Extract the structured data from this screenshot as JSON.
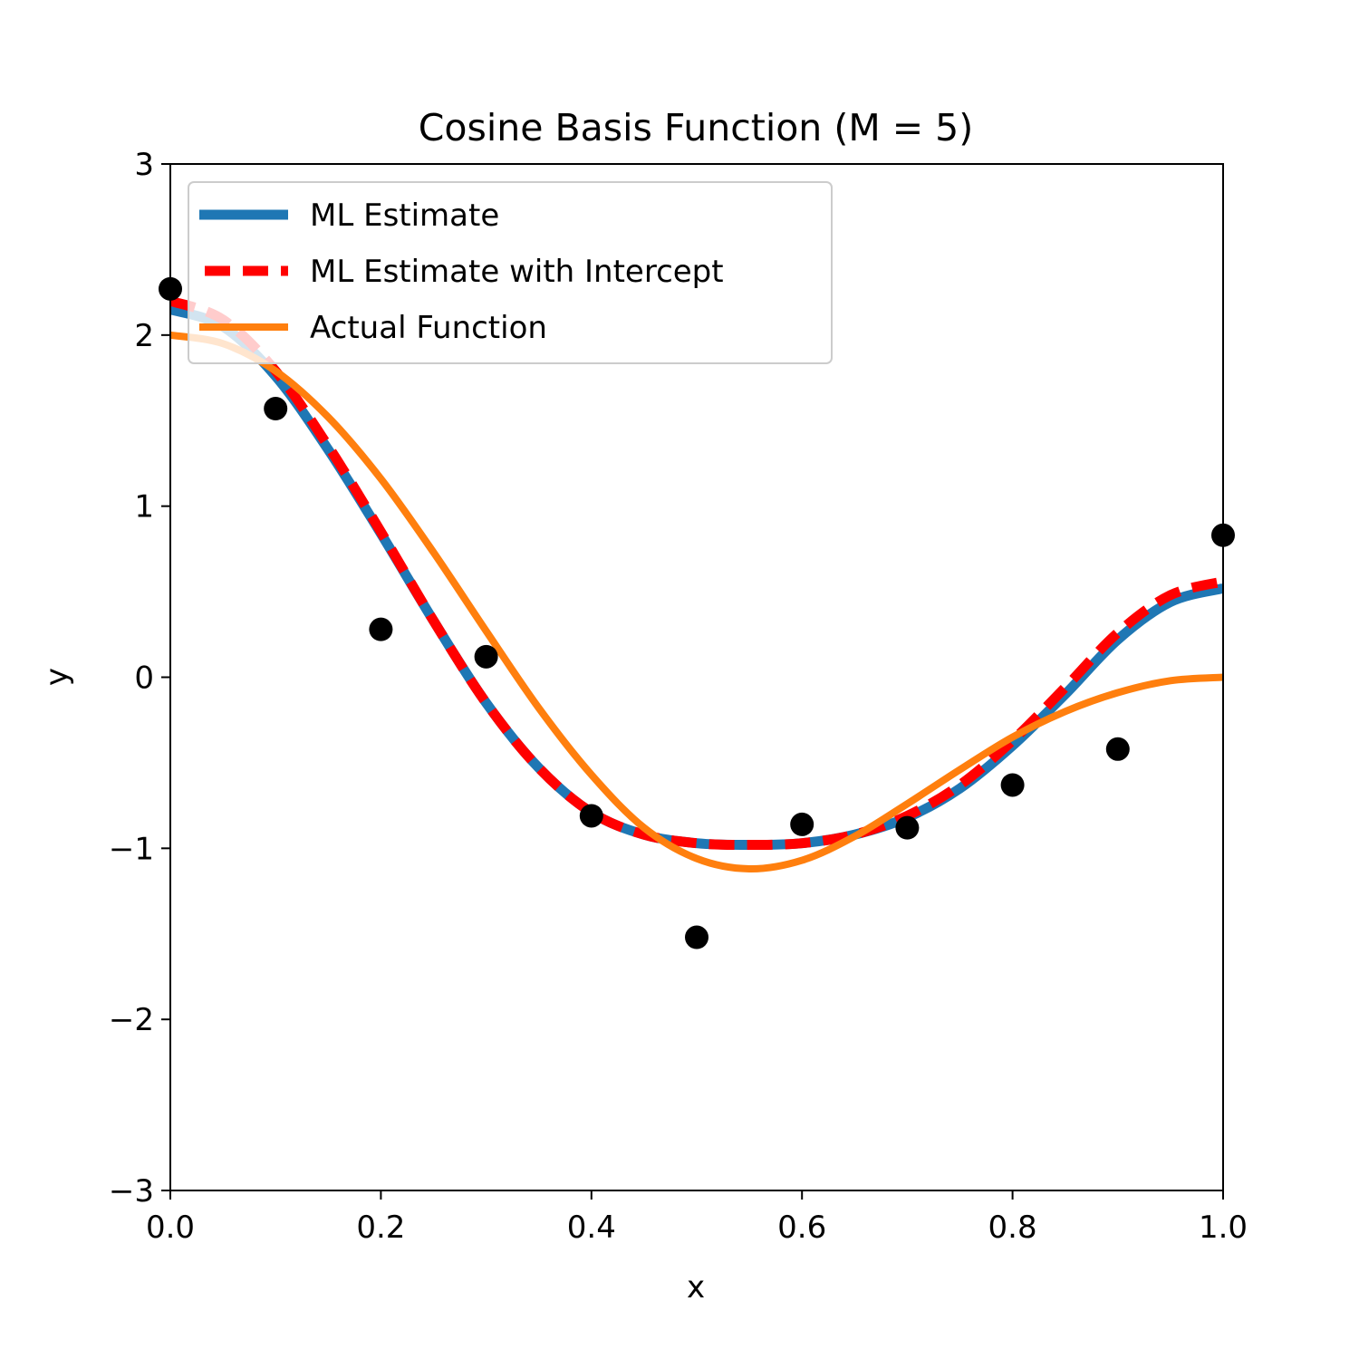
{
  "chart_data": {
    "type": "line",
    "title": "Cosine Basis Function (M = 5)",
    "xlabel": "x",
    "ylabel": "y",
    "xlim": [
      0.0,
      1.0
    ],
    "ylim": [
      -3,
      3
    ],
    "xticks": [
      "0.0",
      "0.2",
      "0.4",
      "0.6",
      "0.8",
      "1.0"
    ],
    "yticks": [
      "−3",
      "−2",
      "−1",
      "0",
      "1",
      "2",
      "3"
    ],
    "grid": false,
    "legend_position": "upper-left",
    "x": [
      0.0,
      0.05,
      0.1,
      0.15,
      0.2,
      0.25,
      0.3,
      0.35,
      0.4,
      0.45,
      0.5,
      0.55,
      0.6,
      0.65,
      0.7,
      0.75,
      0.8,
      0.85,
      0.9,
      0.95,
      1.0
    ],
    "series": [
      {
        "name": "ML Estimate",
        "color": "#1f77b4",
        "style": "solid",
        "values": [
          2.15,
          2.05,
          1.76,
          1.33,
          0.84,
          0.33,
          -0.15,
          -0.53,
          -0.79,
          -0.92,
          -0.97,
          -0.98,
          -0.97,
          -0.92,
          -0.82,
          -0.65,
          -0.4,
          -0.1,
          0.22,
          0.44,
          0.52
        ]
      },
      {
        "name": "ML Estimate with Intercept",
        "color": "#ff0000",
        "style": "dashed",
        "values": [
          2.2,
          2.09,
          1.79,
          1.35,
          0.85,
          0.33,
          -0.15,
          -0.53,
          -0.79,
          -0.92,
          -0.97,
          -0.98,
          -0.97,
          -0.92,
          -0.81,
          -0.63,
          -0.37,
          -0.06,
          0.26,
          0.48,
          0.56
        ]
      },
      {
        "name": "Actual Function",
        "color": "#ff7f0e",
        "style": "solid",
        "values": [
          2.0,
          1.95,
          1.79,
          1.52,
          1.16,
          0.73,
          0.27,
          -0.18,
          -0.57,
          -0.88,
          -1.06,
          -1.12,
          -1.07,
          -0.93,
          -0.74,
          -0.54,
          -0.35,
          -0.2,
          -0.09,
          -0.02,
          0.0
        ]
      }
    ],
    "scatter": {
      "color": "#000000",
      "x": [
        0.0,
        0.1,
        0.2,
        0.3,
        0.4,
        0.5,
        0.6,
        0.7,
        0.8,
        0.9,
        1.0
      ],
      "y": [
        2.27,
        1.57,
        0.28,
        0.12,
        -0.81,
        -1.52,
        -0.86,
        -0.88,
        -0.63,
        -0.42,
        0.83
      ]
    }
  }
}
